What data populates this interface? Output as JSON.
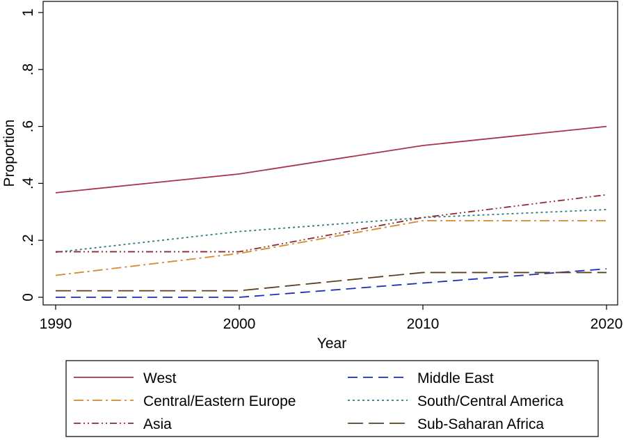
{
  "chart_data": {
    "type": "line",
    "title": "",
    "xlabel": "Year",
    "ylabel": "Proportion",
    "x": [
      1990,
      2000,
      2010,
      2020
    ],
    "xticks": [
      "1990",
      "2000",
      "2010",
      "2020"
    ],
    "xlim": [
      1990,
      2020
    ],
    "yticks": [
      {
        "value": 0,
        "label": "0"
      },
      {
        "value": 0.2,
        "label": ".2"
      },
      {
        "value": 0.4,
        "label": ".4"
      },
      {
        "value": 0.6,
        "label": ".6"
      },
      {
        "value": 0.8,
        "label": ".8"
      },
      {
        "value": 1,
        "label": "1"
      }
    ],
    "ylim": [
      0,
      1
    ],
    "grid": false,
    "legend_position": "bottom",
    "series": [
      {
        "name": "West",
        "values": [
          0.367,
          0.433,
          0.533,
          0.6
        ],
        "color": "#a8334a",
        "dash": "solid"
      },
      {
        "name": "Middle East",
        "values": [
          0.0,
          0.0,
          0.05,
          0.1
        ],
        "color": "#1a2fb5",
        "dash": "dash"
      },
      {
        "name": "Central/Eastern Europe",
        "values": [
          0.077,
          0.154,
          0.269,
          0.269
        ],
        "color": "#d4892f",
        "dash": "longdashdot"
      },
      {
        "name": "South/Central America",
        "values": [
          0.158,
          0.231,
          0.28,
          0.308
        ],
        "color": "#2e7b82",
        "dash": "dot"
      },
      {
        "name": "Asia",
        "values": [
          0.16,
          0.16,
          0.28,
          0.36
        ],
        "color": "#8b2a32",
        "dash": "dashdotdot"
      },
      {
        "name": "Sub-Saharan Africa",
        "values": [
          0.023,
          0.023,
          0.087,
          0.087
        ],
        "color": "#5a4020",
        "dash": "longdash"
      }
    ]
  }
}
